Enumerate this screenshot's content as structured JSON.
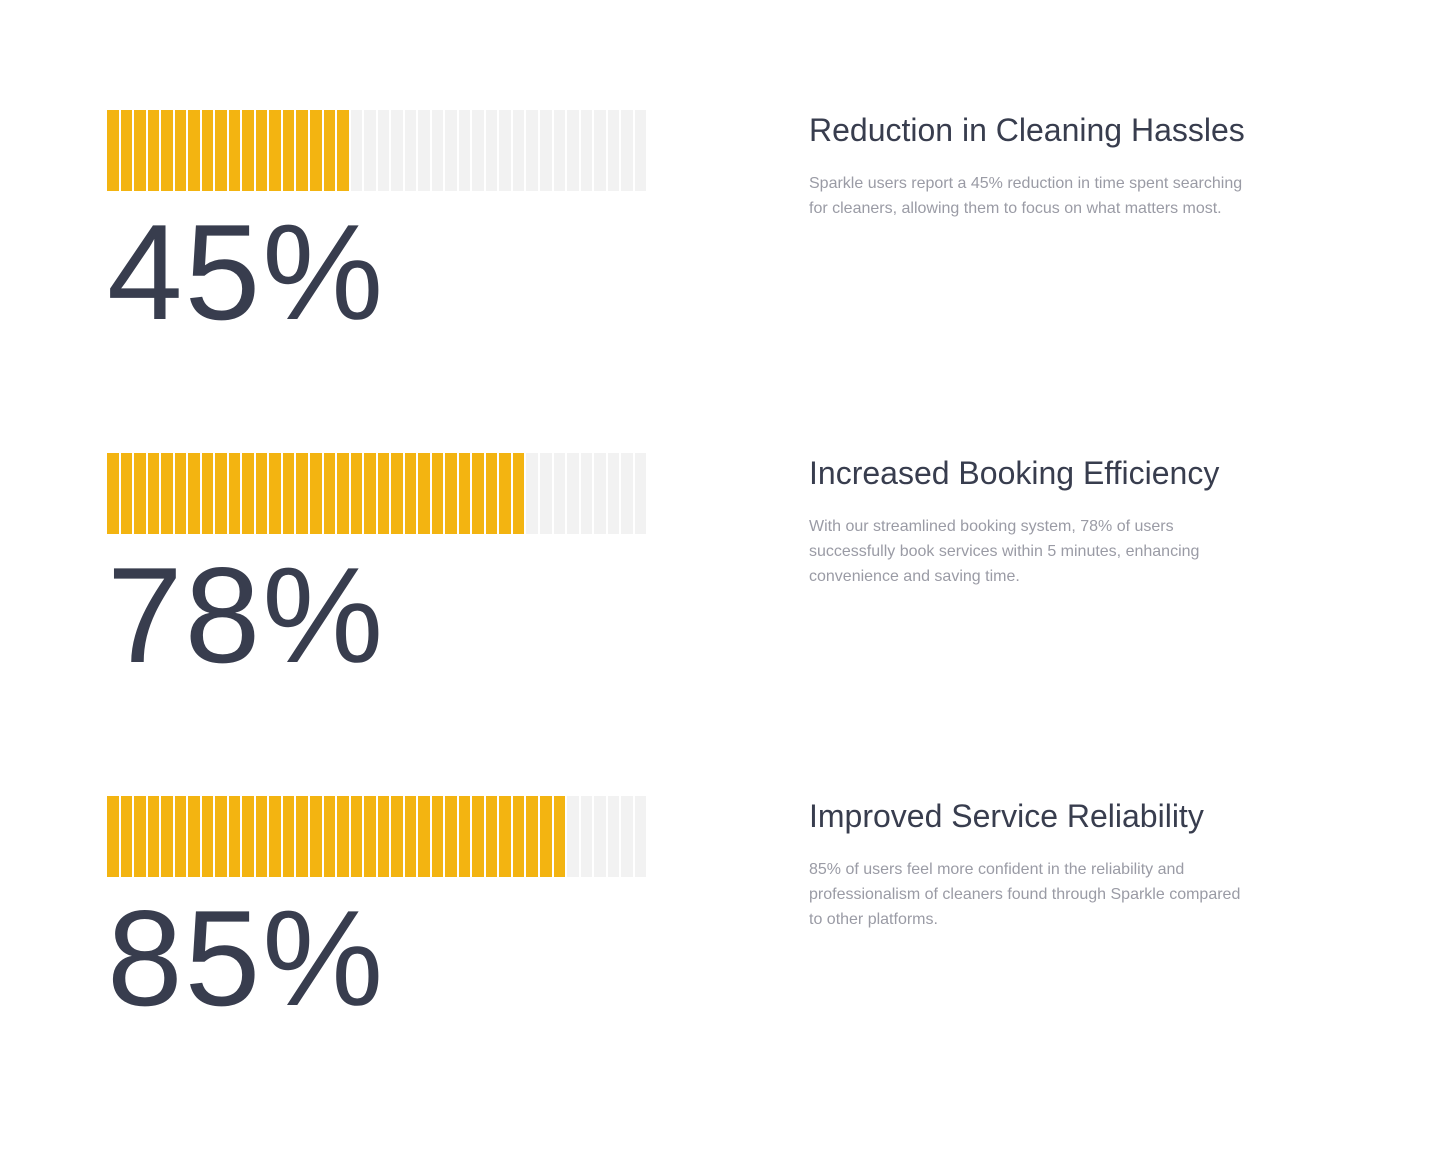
{
  "stats": [
    {
      "value_text": "45%",
      "progress_percent": 45,
      "title": "Reduction in Cleaning Hassles",
      "description": "Sparkle users report a 45% reduction in time spent searching for cleaners, allowing them to focus on what matters most."
    },
    {
      "value_text": "78%",
      "progress_percent": 78,
      "title": "Increased Booking Efficiency",
      "description": "With our streamlined booking system, 78% of users successfully book services within 5 minutes, enhancing convenience and saving time."
    },
    {
      "value_text": "85%",
      "progress_percent": 85,
      "title": "Improved Service Reliability",
      "description": "85% of users feel more confident in the reliability and professionalism of cleaners found through Sparkle compared to other platforms."
    }
  ],
  "colors": {
    "bar_filled": "#f3b411",
    "bar_empty": "#f2f2f2",
    "heading": "#383d4e",
    "body_text": "#9a9ba5"
  }
}
